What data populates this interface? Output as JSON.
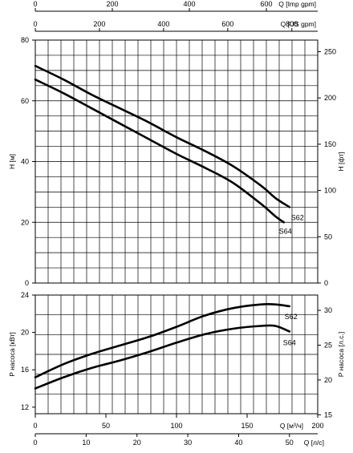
{
  "chart_data": [
    {
      "type": "line",
      "panel": "head",
      "title": "",
      "ylabel": "H [м]",
      "y2label": "H [фт]",
      "xlabel_top1": "Q [Imp gpm]",
      "xlabel_top2": "Q [US gpm]",
      "ylim": [
        0,
        80
      ],
      "y2lim": [
        0,
        262.5
      ],
      "xlim": [
        0,
        200
      ],
      "yticks": [
        0,
        20,
        40,
        60,
        80
      ],
      "y2ticks": [
        0,
        50,
        100,
        150,
        200,
        250
      ],
      "imp_ticks": [
        0,
        200,
        400,
        600
      ],
      "us_ticks": [
        0,
        200,
        400,
        600,
        800
      ],
      "grid": true,
      "series": [
        {
          "name": "S62",
          "x": [
            0,
            20,
            40,
            60,
            80,
            100,
            120,
            140,
            160,
            170,
            180
          ],
          "y": [
            71.5,
            67,
            62,
            57.5,
            53,
            48,
            43.5,
            38.5,
            32,
            28,
            25
          ]
        },
        {
          "name": "S64",
          "x": [
            0,
            20,
            40,
            60,
            80,
            100,
            120,
            140,
            160,
            170,
            176
          ],
          "y": [
            67,
            62.5,
            57.5,
            52.5,
            47.5,
            42.5,
            38,
            33,
            26,
            22,
            20
          ]
        }
      ]
    },
    {
      "type": "line",
      "panel": "power",
      "title": "",
      "ylabel": "P насоса [кВт]",
      "y2label": "P насоса [л.с.]",
      "xlabel": "Q [м³/ч]",
      "xlabel2": "Q [л/с]",
      "ylim": [
        11.3,
        24
      ],
      "y2lim": [
        15.15,
        32.2
      ],
      "xlim": [
        0,
        200
      ],
      "yticks": [
        12,
        16,
        20,
        24
      ],
      "y2ticks": [
        15,
        20,
        25,
        30
      ],
      "xticks": [
        0,
        50,
        100,
        150,
        200
      ],
      "x2ticks": [
        0,
        10,
        20,
        30,
        40,
        50
      ],
      "grid": true,
      "series": [
        {
          "name": "S62",
          "x": [
            0,
            20,
            40,
            60,
            80,
            100,
            120,
            140,
            160,
            170,
            180
          ],
          "y": [
            15.2,
            16.6,
            17.7,
            18.6,
            19.5,
            20.6,
            21.8,
            22.6,
            23,
            23,
            22.8
          ]
        },
        {
          "name": "S64",
          "x": [
            0,
            20,
            40,
            60,
            80,
            100,
            120,
            140,
            160,
            170,
            180
          ],
          "y": [
            14,
            15.2,
            16.2,
            17,
            17.9,
            18.9,
            19.8,
            20.4,
            20.7,
            20.7,
            20.1
          ]
        }
      ]
    }
  ]
}
